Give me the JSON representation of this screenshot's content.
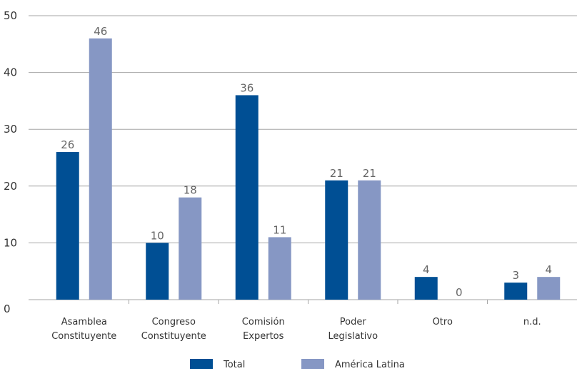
{
  "chart_data": {
    "type": "bar",
    "title": "",
    "xlabel": "",
    "ylabel": "",
    "ylim": [
      0,
      50
    ],
    "yticks": [
      0,
      10,
      20,
      30,
      40,
      50
    ],
    "grid": true,
    "legend_position": "bottom",
    "categories": [
      [
        "Asamblea",
        "Constituyente"
      ],
      [
        "Congreso",
        "Constituyente"
      ],
      [
        "Comisión",
        "Expertos"
      ],
      [
        "Poder",
        "Legislativo"
      ],
      [
        "Otro"
      ],
      [
        "n.d."
      ]
    ],
    "series": [
      {
        "name": "Total",
        "color": "#004f94",
        "values": [
          26,
          10,
          36,
          21,
          4,
          3
        ]
      },
      {
        "name": "América Latina",
        "color": "#8697c4",
        "values": [
          46,
          18,
          11,
          21,
          0,
          4
        ]
      }
    ]
  }
}
